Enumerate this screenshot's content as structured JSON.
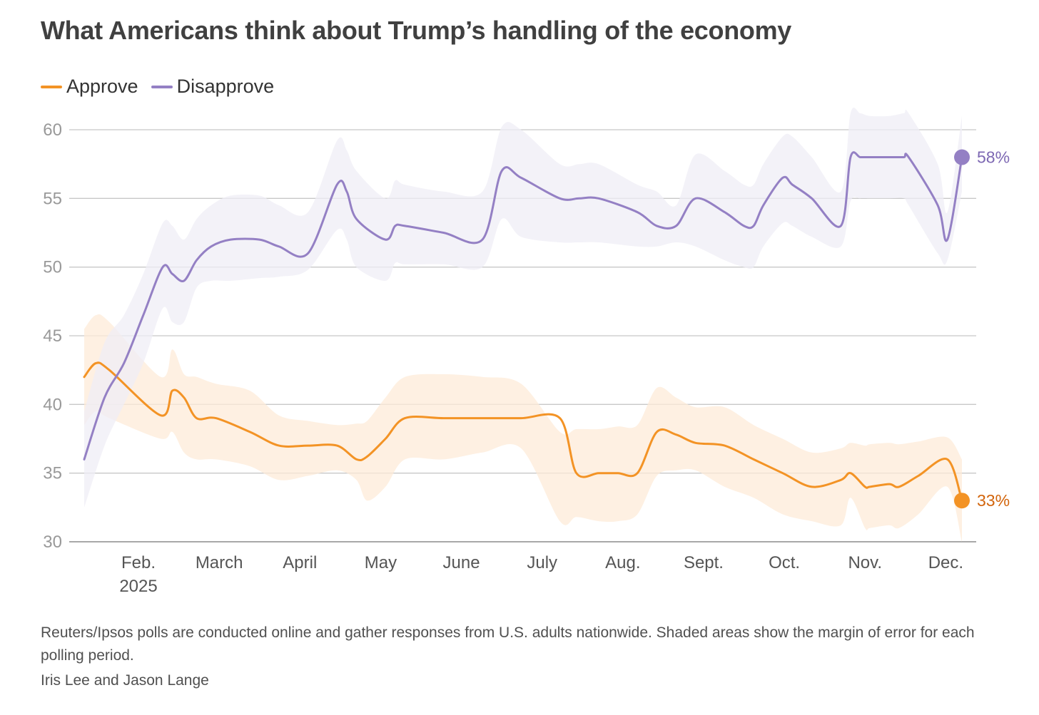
{
  "chart_data": {
    "type": "line",
    "title": "What Americans think about Trump’s handling of the economy",
    "ylim": [
      30,
      60
    ],
    "y_ticks": [
      "60",
      "55",
      "50",
      "45",
      "40",
      "35",
      "30"
    ],
    "x_ticks": [
      {
        "label": "Feb.",
        "sublabel": "2025"
      },
      {
        "label": "March",
        "sublabel": ""
      },
      {
        "label": "April",
        "sublabel": ""
      },
      {
        "label": "May",
        "sublabel": ""
      },
      {
        "label": "June",
        "sublabel": ""
      },
      {
        "label": "July",
        "sublabel": ""
      },
      {
        "label": "Aug.",
        "sublabel": ""
      },
      {
        "label": "Sept.",
        "sublabel": ""
      },
      {
        "label": "Oct.",
        "sublabel": ""
      },
      {
        "label": "Nov.",
        "sublabel": ""
      },
      {
        "label": "Dec.",
        "sublabel": ""
      }
    ],
    "x_start": 2025.069,
    "x_end": 2025.975,
    "grid": true,
    "legend_position": "top-left",
    "series": [
      {
        "name": "Approve",
        "color": "#f39325",
        "band_color": "#fdebd8",
        "label_color": "#d2640b",
        "end_label": "33%",
        "x": [
          2025.069,
          2025.081,
          2025.095,
          2025.148,
          2025.16,
          2025.172,
          2025.185,
          2025.205,
          2025.24,
          2025.27,
          2025.3,
          2025.33,
          2025.35,
          2025.361,
          2025.38,
          2025.4,
          2025.44,
          2025.48,
          2025.52,
          2025.56,
          2025.577,
          2025.6,
          2025.62,
          2025.64,
          2025.66,
          2025.68,
          2025.7,
          2025.73,
          2025.76,
          2025.79,
          2025.82,
          2025.85,
          2025.86,
          2025.875,
          2025.88,
          2025.9,
          2025.91,
          2025.93,
          2025.96,
          2025.975
        ],
        "values": [
          42,
          43,
          42.5,
          39.2,
          41,
          40.5,
          39,
          39,
          38,
          37,
          37,
          37,
          36,
          36.2,
          37.5,
          39,
          39,
          39,
          39,
          39,
          35,
          35,
          35,
          35,
          38,
          37.8,
          37.2,
          37,
          36,
          35,
          34,
          34.5,
          35,
          34,
          34,
          34.2,
          34,
          34.8,
          36,
          33
        ],
        "band_low": [
          38.5,
          39.5,
          39,
          37.5,
          38,
          36.5,
          36,
          36,
          35.5,
          34.5,
          34.8,
          35.2,
          34.5,
          33,
          34,
          36,
          36,
          36.5,
          36.8,
          31.5,
          31.8,
          31.5,
          31.5,
          32,
          34.8,
          35.2,
          35.2,
          34,
          33.2,
          32,
          31.5,
          31.2,
          33.2,
          31,
          31,
          31.2,
          31,
          32,
          34,
          30
        ],
        "band_high": [
          45.5,
          46.5,
          46,
          42,
          44,
          42.2,
          42,
          41.5,
          41,
          39.2,
          38.8,
          38.5,
          38.6,
          38.8,
          40.5,
          42,
          42.2,
          42,
          41.5,
          38,
          38.2,
          38.2,
          38.4,
          38.5,
          41.2,
          40.5,
          39.8,
          39.8,
          38.5,
          37.5,
          36.5,
          36.8,
          37.2,
          37,
          37.1,
          37.2,
          37.1,
          37.3,
          37.6,
          36
        ]
      },
      {
        "name": "Disapprove",
        "color": "#9480c4",
        "band_color": "#efedf6",
        "label_color": "#7d68b3",
        "end_label": "58%",
        "x": [
          2025.069,
          2025.09,
          2025.11,
          2025.13,
          2025.15,
          2025.16,
          2025.172,
          2025.185,
          2025.2,
          2025.22,
          2025.25,
          2025.27,
          2025.3,
          2025.33,
          2025.34,
          2025.35,
          2025.38,
          2025.39,
          2025.4,
          2025.44,
          2025.48,
          2025.5,
          2025.52,
          2025.56,
          2025.58,
          2025.6,
          2025.64,
          2025.66,
          2025.68,
          2025.7,
          2025.73,
          2025.75,
          2025.76,
          2025.77,
          2025.79,
          2025.8,
          2025.82,
          2025.85,
          2025.86,
          2025.87,
          2025.88,
          2025.9,
          2025.915,
          2025.92,
          2025.95,
          2025.96,
          2025.975
        ],
        "values": [
          36,
          40.5,
          43,
          46.5,
          50,
          49.5,
          49,
          50.5,
          51.5,
          52,
          52,
          51.5,
          51,
          56,
          55.5,
          53.5,
          52,
          53,
          53,
          52.5,
          52,
          57,
          56.5,
          55,
          55,
          55,
          54,
          53,
          53,
          55,
          54,
          53,
          53,
          54.5,
          56.5,
          56,
          55,
          53,
          58,
          58,
          58,
          58,
          58,
          58,
          54.5,
          52,
          58
        ],
        "band_low": [
          32.5,
          37,
          40,
          43,
          47,
          46,
          46,
          48.5,
          49,
          49,
          49.2,
          49.3,
          49.8,
          52.7,
          52,
          50,
          49,
          50.3,
          50.2,
          50.2,
          50,
          53.5,
          52.2,
          51.8,
          51.8,
          51.8,
          51.5,
          51.5,
          51.8,
          51.5,
          50.5,
          50,
          50,
          51.5,
          53.2,
          53,
          52.2,
          51.5,
          54.8,
          55,
          55,
          55,
          55,
          54.5,
          51,
          50.5,
          55.5
        ],
        "band_high": [
          39.5,
          44.5,
          46.5,
          49.5,
          53.2,
          53,
          52,
          53.5,
          54.5,
          55.2,
          55.2,
          54.5,
          54,
          59.2,
          58.5,
          57,
          55,
          56.3,
          56,
          55.5,
          55.5,
          60.2,
          60,
          57.5,
          57.5,
          57.5,
          56,
          55.5,
          54.5,
          58.2,
          57,
          56,
          56,
          57.5,
          59.5,
          59.5,
          58,
          55.5,
          61.2,
          61.2,
          61,
          61,
          61.2,
          61.2,
          57.5,
          54,
          61
        ]
      }
    ]
  },
  "footnote": "Reuters/Ipsos polls are conducted online and gather responses from U.S. adults nationwide. Shaded areas show the margin of error for each polling period.",
  "credit": "Iris Lee and Jason Lange"
}
